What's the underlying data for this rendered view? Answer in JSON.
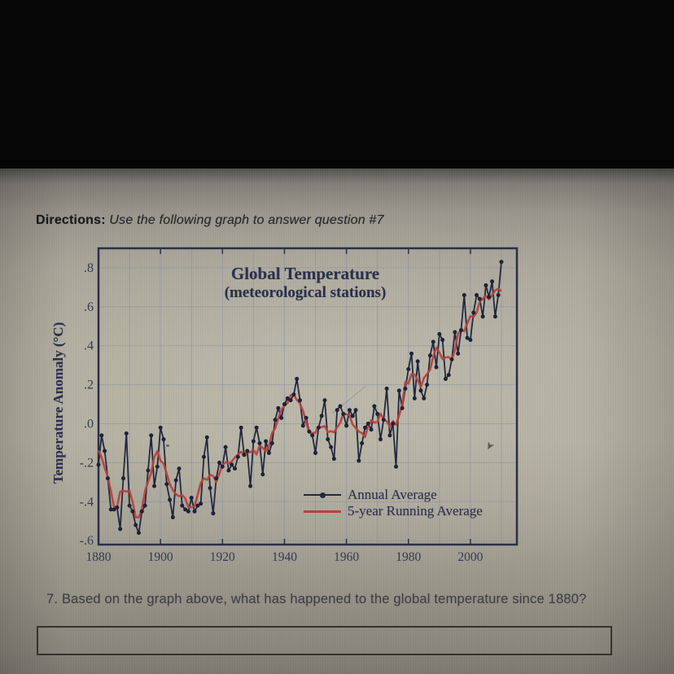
{
  "directions": {
    "label": "Directions:",
    "text": " Use the following graph to answer question #7"
  },
  "question": {
    "number": "7.",
    "text": " Based on the graph above, what has happened to the global temperature since 1880?"
  },
  "answer_box": {
    "value": "",
    "placeholder": ""
  },
  "colors": {
    "paper": "#b1ae9f",
    "chart_ink": "#2a2f48",
    "annual_line": "#232840",
    "running_line": "#b8423a",
    "grid": "#7f8aa6",
    "question_text": "#3e4045"
  },
  "chart_data": {
    "type": "line",
    "title": "Global Temperature",
    "subtitle": "(meteorological stations)",
    "xlabel": "",
    "ylabel": "Temperature Anomaly (°C)",
    "grid": true,
    "legend_position": "inside-bottom-right",
    "x_domain": [
      1880,
      2015
    ],
    "y_domain": [
      -0.62,
      0.9
    ],
    "x_ticks": [
      {
        "v": 1880,
        "label": "1880"
      },
      {
        "v": 1900,
        "label": "1900"
      },
      {
        "v": 1920,
        "label": "1920"
      },
      {
        "v": 1940,
        "label": "1940"
      },
      {
        "v": 1960,
        "label": "1960"
      },
      {
        "v": 1980,
        "label": "1980"
      },
      {
        "v": 2000,
        "label": "2000"
      }
    ],
    "x_gridlines": [
      1890,
      1900,
      1910,
      1920,
      1930,
      1940,
      1950,
      1960,
      1970,
      1980,
      1990,
      2000,
      2010
    ],
    "y_ticks": [
      {
        "v": 0.8,
        "label": ".8"
      },
      {
        "v": 0.6,
        "label": ".6"
      },
      {
        "v": 0.4,
        "label": ".4"
      },
      {
        "v": 0.2,
        "label": ".2"
      },
      {
        "v": 0.0,
        "label": ".0"
      },
      {
        "v": -0.2,
        "label": "-.2"
      },
      {
        "v": -0.4,
        "label": "-.4"
      },
      {
        "v": -0.6,
        "label": "-.6"
      }
    ],
    "series": [
      {
        "name": "Annual Average",
        "color": "#232840",
        "marker": "dot",
        "x_start": 1880,
        "x_step": 1,
        "values": [
          -0.21,
          -0.06,
          -0.14,
          -0.28,
          -0.44,
          -0.44,
          -0.43,
          -0.54,
          -0.28,
          -0.05,
          -0.42,
          -0.45,
          -0.52,
          -0.56,
          -0.45,
          -0.42,
          -0.24,
          -0.06,
          -0.32,
          -0.22,
          -0.02,
          -0.08,
          -0.31,
          -0.39,
          -0.48,
          -0.29,
          -0.23,
          -0.42,
          -0.44,
          -0.45,
          -0.38,
          -0.45,
          -0.42,
          -0.41,
          -0.17,
          -0.07,
          -0.33,
          -0.46,
          -0.28,
          -0.2,
          -0.22,
          -0.12,
          -0.24,
          -0.21,
          -0.23,
          -0.17,
          -0.02,
          -0.16,
          -0.14,
          -0.32,
          -0.09,
          -0.02,
          -0.1,
          -0.26,
          -0.09,
          -0.15,
          -0.1,
          0.02,
          0.08,
          0.03,
          0.1,
          0.13,
          0.12,
          0.15,
          0.23,
          0.12,
          -0.01,
          0.03,
          -0.04,
          -0.06,
          -0.15,
          -0.02,
          0.04,
          0.12,
          -0.08,
          -0.12,
          -0.18,
          0.07,
          0.09,
          0.05,
          -0.01,
          0.07,
          0.04,
          0.07,
          -0.19,
          -0.1,
          -0.02,
          0.0,
          -0.03,
          0.09,
          0.05,
          -0.08,
          0.02,
          0.18,
          -0.06,
          0.0,
          -0.22,
          0.17,
          0.08,
          0.18,
          0.28,
          0.36,
          0.13,
          0.32,
          0.17,
          0.13,
          0.2,
          0.35,
          0.42,
          0.29,
          0.46,
          0.43,
          0.23,
          0.25,
          0.33,
          0.47,
          0.36,
          0.48,
          0.66,
          0.44,
          0.43,
          0.57,
          0.66,
          0.64,
          0.55,
          0.71,
          0.65,
          0.73,
          0.55,
          0.66,
          0.83
        ]
      },
      {
        "name": "5-year Running Average",
        "color": "#b8423a",
        "derived_from": "Annual Average",
        "derivation": "centered 5-year running mean"
      }
    ]
  }
}
